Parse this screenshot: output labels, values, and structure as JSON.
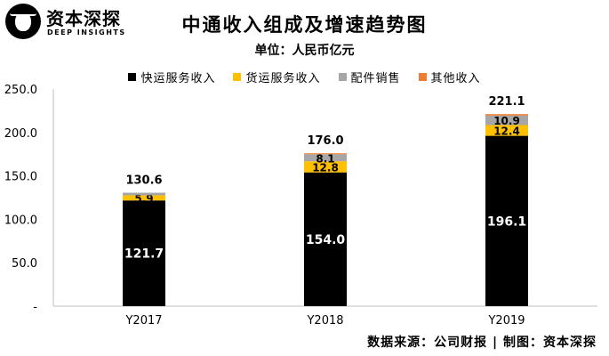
{
  "logo": {
    "name_cn": "资本深探",
    "name_en": "DEEP INSIGHTS"
  },
  "source_note": "数据来源：公司财报 | 制图：资本深探",
  "chart_data": {
    "type": "bar",
    "stacked": true,
    "title": "中通收入组成及增速趋势图",
    "subtitle": "单位：人民币亿元",
    "categories": [
      "Y2017",
      "Y2018",
      "Y2019"
    ],
    "series": [
      {
        "name": "快运服务收入",
        "color": "#000000",
        "label_color": "#ffffff",
        "values": [
          121.7,
          154.0,
          196.1
        ]
      },
      {
        "name": "货运服务收入",
        "color": "#ffc000",
        "label_color": "#000000",
        "values": [
          5.9,
          12.8,
          12.4
        ]
      },
      {
        "name": "配件销售",
        "color": "#a6a6a6",
        "label_color": "#000000",
        "values": [
          3.0,
          8.1,
          10.9
        ]
      },
      {
        "name": "其他收入",
        "color": "#ed7d31",
        "label_color": "#000000",
        "values": [
          0,
          1.1,
          1.7
        ]
      }
    ],
    "segment_labels": [
      [
        "121.7",
        "154.0",
        "196.1"
      ],
      [
        "5.9",
        "12.8",
        "12.4"
      ],
      [
        "",
        "8.1",
        "10.9"
      ],
      [
        "",
        "",
        ""
      ]
    ],
    "totals": [
      "130.6",
      "176.0",
      "221.1"
    ],
    "y_ticks": [
      "-",
      "50.0",
      "100.0",
      "150.0",
      "200.0",
      "250.0"
    ],
    "ylim": [
      0,
      250
    ],
    "legend_position": "top",
    "grid": false
  }
}
